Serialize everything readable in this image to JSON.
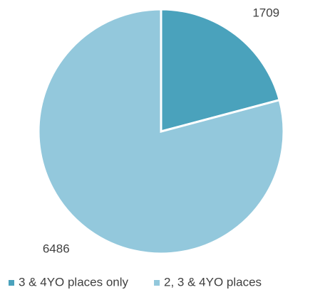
{
  "chart_data": {
    "type": "pie",
    "categories": [
      "3 & 4YO places only",
      "2, 3 & 4YO places"
    ],
    "values": [
      1709,
      6486
    ],
    "colors": [
      "#4aa2bc",
      "#93c8dc"
    ],
    "legend": "bottom"
  }
}
